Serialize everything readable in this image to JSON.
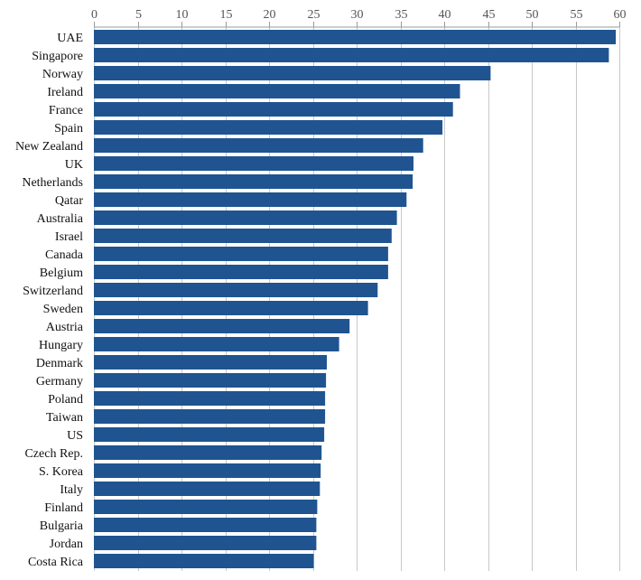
{
  "chart_data": {
    "type": "bar",
    "orientation": "horizontal",
    "title": "",
    "xlabel": "",
    "ylabel": "",
    "xlim": [
      0,
      60
    ],
    "x_ticks": [
      0,
      5,
      10,
      15,
      20,
      25,
      30,
      35,
      40,
      45,
      50,
      55,
      60
    ],
    "x_axis_position": "top",
    "grid": true,
    "legend": "none",
    "bar_color": "#1f5490",
    "categories": [
      "UAE",
      "Singapore",
      "Norway",
      "Ireland",
      "France",
      "Spain",
      "New Zealand",
      "UK",
      "Netherlands",
      "Qatar",
      "Australia",
      "Israel",
      "Canada",
      "Belgium",
      "Switzerland",
      "Sweden",
      "Austria",
      "Hungary",
      "Denmark",
      "Germany",
      "Poland",
      "Taiwan",
      "US",
      "Czech Rep.",
      "S. Korea",
      "Italy",
      "Finland",
      "Bulgaria",
      "Jordan",
      "Costa Rica"
    ],
    "values": [
      59.6,
      58.8,
      45.3,
      41.8,
      41.0,
      39.8,
      37.6,
      36.5,
      36.4,
      35.7,
      34.6,
      34.0,
      33.6,
      33.6,
      32.4,
      31.3,
      29.2,
      28.0,
      26.6,
      26.5,
      26.4,
      26.4,
      26.3,
      26.0,
      25.9,
      25.8,
      25.5,
      25.4,
      25.4,
      25.1
    ]
  }
}
